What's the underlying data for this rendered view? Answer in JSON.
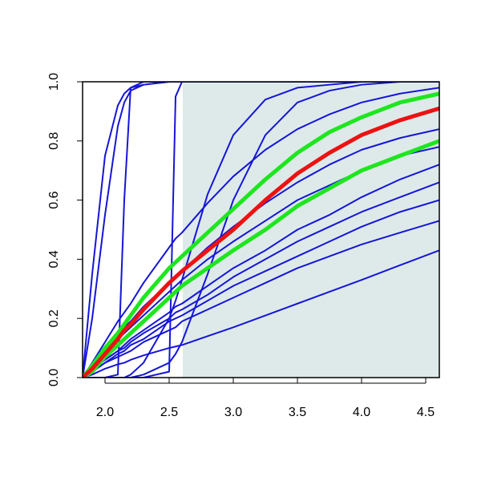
{
  "chart_data": {
    "type": "line",
    "x": [
      1.825,
      1.9,
      2.0,
      2.1,
      2.15,
      2.2,
      2.3,
      2.5,
      2.55,
      2.6,
      2.8,
      3.0,
      3.25,
      3.5,
      3.75,
      4.0,
      4.3,
      4.606
    ],
    "series": [
      {
        "color": "#1515d8",
        "width": 2,
        "values": [
          0,
          0.35,
          0.75,
          0.92,
          0.96,
          0.98,
          0.99,
          1,
          1,
          1,
          1,
          1,
          1,
          1,
          1,
          1,
          1,
          1
        ]
      },
      {
        "color": "#1515d8",
        "width": 2,
        "values": [
          0,
          0.2,
          0.55,
          0.85,
          0.93,
          0.97,
          0.99,
          1,
          1,
          1,
          1,
          1,
          1,
          1,
          1,
          1,
          1,
          1
        ]
      },
      {
        "color": "#1515d8",
        "width": 2,
        "values": [
          0,
          0,
          0,
          0.01,
          0.6,
          0.98,
          1,
          1,
          1,
          1,
          1,
          1,
          1,
          1,
          1,
          1,
          1,
          1
        ]
      },
      {
        "color": "#1515d8",
        "width": 2,
        "values": [
          0,
          0,
          0,
          0,
          0,
          0,
          0,
          0.02,
          0.95,
          1,
          1,
          1,
          1,
          1,
          1,
          1,
          1,
          1
        ]
      },
      {
        "color": "#1515d8",
        "width": 2,
        "values": [
          0,
          0,
          0,
          0,
          0,
          0.01,
          0.05,
          0.2,
          0.26,
          0.33,
          0.62,
          0.82,
          0.94,
          0.98,
          0.99,
          1,
          1,
          1
        ]
      },
      {
        "color": "#1515d8",
        "width": 2,
        "values": [
          0,
          0,
          0,
          0,
          0,
          0,
          0.01,
          0.05,
          0.08,
          0.12,
          0.35,
          0.6,
          0.82,
          0.93,
          0.97,
          0.99,
          1,
          1
        ]
      },
      {
        "color": "#1515d8",
        "width": 2,
        "values": [
          0,
          0.05,
          0.12,
          0.19,
          0.22,
          0.25,
          0.32,
          0.44,
          0.47,
          0.49,
          0.59,
          0.68,
          0.77,
          0.84,
          0.89,
          0.93,
          0.96,
          0.98
        ]
      },
      {
        "color": "#1515d8",
        "width": 2,
        "values": [
          0,
          0.01,
          0.03,
          0.045,
          0.05,
          0.06,
          0.075,
          0.1,
          0.105,
          0.11,
          0.14,
          0.17,
          0.21,
          0.25,
          0.29,
          0.33,
          0.38,
          0.43
        ]
      },
      {
        "color": "#1515d8",
        "width": 2,
        "values": [
          0,
          0.02,
          0.05,
          0.07,
          0.08,
          0.09,
          0.12,
          0.16,
          0.17,
          0.19,
          0.23,
          0.27,
          0.32,
          0.37,
          0.41,
          0.45,
          0.49,
          0.53
        ]
      },
      {
        "color": "#1515d8",
        "width": 2,
        "values": [
          0,
          0.02,
          0.05,
          0.08,
          0.09,
          0.11,
          0.13,
          0.19,
          0.2,
          0.21,
          0.26,
          0.31,
          0.36,
          0.41,
          0.46,
          0.51,
          0.56,
          0.6
        ]
      },
      {
        "color": "#1515d8",
        "width": 2,
        "values": [
          0,
          0.03,
          0.06,
          0.09,
          0.1,
          0.12,
          0.15,
          0.2,
          0.22,
          0.23,
          0.28,
          0.34,
          0.4,
          0.46,
          0.51,
          0.56,
          0.61,
          0.66
        ]
      },
      {
        "color": "#1515d8",
        "width": 2,
        "values": [
          0,
          0.03,
          0.06,
          0.09,
          0.11,
          0.13,
          0.16,
          0.22,
          0.24,
          0.25,
          0.31,
          0.37,
          0.43,
          0.5,
          0.55,
          0.61,
          0.67,
          0.72
        ]
      },
      {
        "color": "#1515d8",
        "width": 2,
        "values": [
          0,
          0.04,
          0.09,
          0.13,
          0.15,
          0.17,
          0.21,
          0.29,
          0.31,
          0.33,
          0.4,
          0.46,
          0.53,
          0.6,
          0.65,
          0.7,
          0.75,
          0.78
        ]
      },
      {
        "color": "#1515d8",
        "width": 2,
        "values": [
          0,
          0.04,
          0.1,
          0.15,
          0.17,
          0.19,
          0.24,
          0.32,
          0.34,
          0.36,
          0.44,
          0.51,
          0.59,
          0.66,
          0.72,
          0.77,
          0.81,
          0.84
        ]
      },
      {
        "color": "#1ee61e",
        "width": 5,
        "values": [
          0,
          0.04,
          0.1,
          0.15,
          0.18,
          0.21,
          0.27,
          0.37,
          0.39,
          0.41,
          0.49,
          0.57,
          0.67,
          0.76,
          0.83,
          0.88,
          0.93,
          0.96
        ]
      },
      {
        "color": "#1ee61e",
        "width": 5,
        "values": [
          0,
          0.02,
          0.07,
          0.11,
          0.13,
          0.15,
          0.19,
          0.27,
          0.29,
          0.31,
          0.37,
          0.43,
          0.5,
          0.58,
          0.64,
          0.7,
          0.75,
          0.8
        ]
      },
      {
        "color": "#ee1111",
        "width": 5,
        "values": [
          0,
          0.03,
          0.08,
          0.13,
          0.16,
          0.18,
          0.23,
          0.32,
          0.34,
          0.36,
          0.43,
          0.5,
          0.6,
          0.69,
          0.76,
          0.82,
          0.87,
          0.91
        ]
      }
    ],
    "shaded_region": {
      "x0": 2.606,
      "color": "#deeaea"
    },
    "xlim": [
      1.825,
      4.606
    ],
    "ylim": [
      0,
      1
    ],
    "xticks": [
      {
        "value": 2.0,
        "label": "2.0"
      },
      2.5,
      {
        "value": 3.0,
        "label": "3.0"
      },
      3.5,
      {
        "value": 4.0,
        "label": "4.0"
      },
      4.5
    ],
    "yticks": [
      {
        "value": 0,
        "label": "0.0"
      },
      0.2,
      0.4,
      0.6,
      0.8,
      {
        "value": 1,
        "label": "1.0"
      }
    ]
  }
}
